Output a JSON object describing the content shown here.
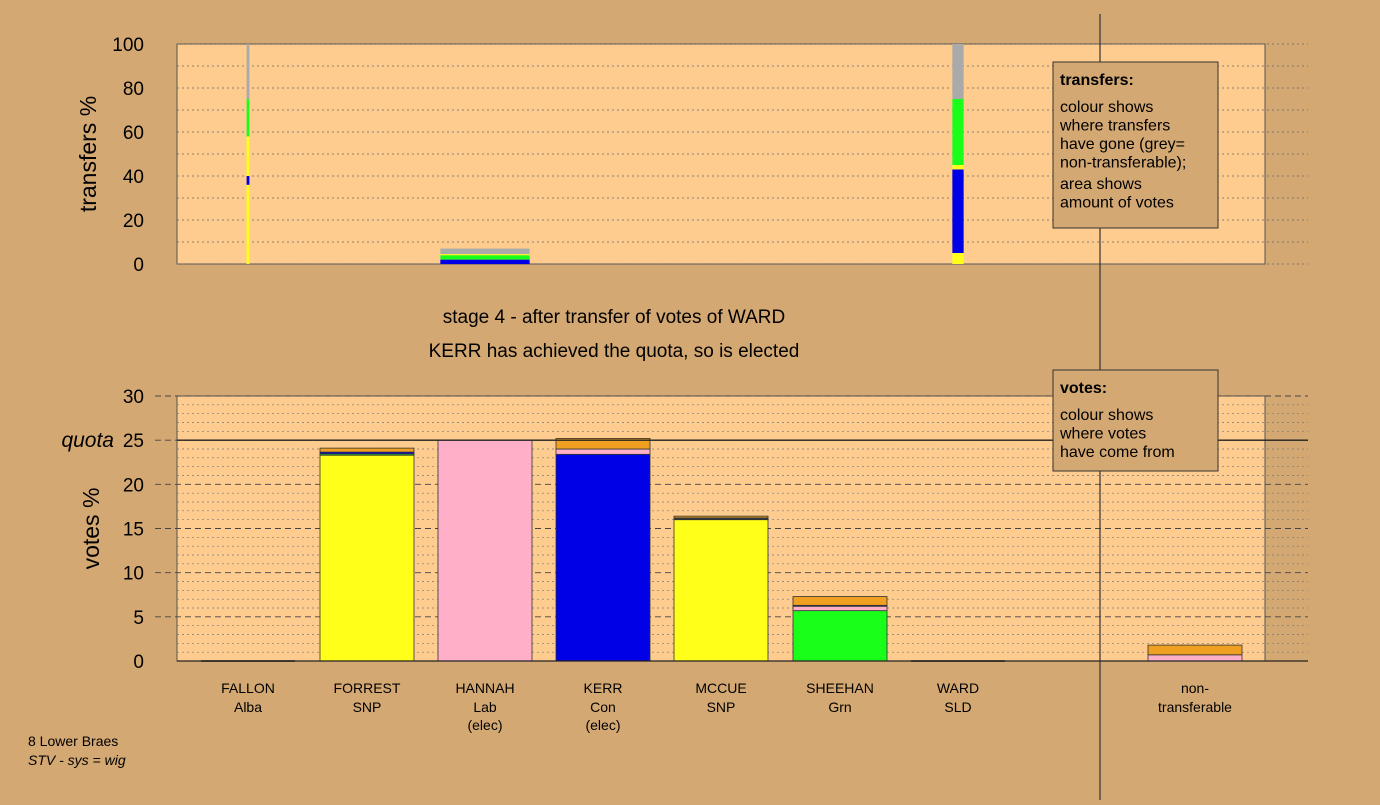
{
  "colors": {
    "background": "#d4a873",
    "plot_area": "#ffcc8f",
    "Alba": "#ff8c1a",
    "SNP": "#ffff1a",
    "Lab": "#ffb0c8",
    "Con": "#0000e6",
    "Grn": "#1aff1a",
    "SLD": "#f0a020",
    "nontransferable": "#aaaaaa",
    "border": "#555555",
    "text": "#000000"
  },
  "stage": {
    "line1": "stage 4 - after transfer of votes of WARD",
    "line2": "KERR has achieved the quota, so is elected"
  },
  "footer": {
    "ward": "8 Lower Braes",
    "system": "STV - sys = wig"
  },
  "chart_data": [
    {
      "id": "transfers",
      "type": "bar",
      "ylabel": "transfers %",
      "ylim": [
        0,
        100
      ],
      "yticks": [
        0,
        20,
        40,
        60,
        80,
        100
      ],
      "legend": {
        "title": "transfers:",
        "lines1": [
          "colour shows",
          "where transfers",
          "have gone (grey=",
          "non-transferable);"
        ],
        "lines2": [
          "area shows",
          "amount of votes"
        ]
      },
      "bars": [
        {
          "candidate": "FALLON",
          "width_share": 0.03,
          "segments": [
            {
              "party": "SNP",
              "from": 0,
              "to": 36
            },
            {
              "party": "Con",
              "from": 36,
              "to": 40
            },
            {
              "party": "SNP",
              "from": 40,
              "to": 58
            },
            {
              "party": "Grn",
              "from": 58,
              "to": 75
            },
            {
              "party": "nontransferable",
              "from": 75,
              "to": 100
            }
          ]
        },
        {
          "candidate": "FORREST",
          "width_share": 0,
          "segments": []
        },
        {
          "candidate": "HANNAH",
          "width_share": 0.95,
          "segments": [
            {
              "party": "Con",
              "from": 0,
              "to": 2
            },
            {
              "party": "Grn",
              "from": 2,
              "to": 4
            },
            {
              "party": "SNP",
              "from": 4,
              "to": 4.5
            },
            {
              "party": "nontransferable",
              "from": 4.5,
              "to": 7
            }
          ]
        },
        {
          "candidate": "KERR",
          "width_share": 0,
          "segments": []
        },
        {
          "candidate": "MCCUE",
          "width_share": 0,
          "segments": []
        },
        {
          "candidate": "SHEEHAN",
          "width_share": 0,
          "segments": []
        },
        {
          "candidate": "WARD",
          "width_share": 0.12,
          "segments": [
            {
              "party": "SNP",
              "from": 0,
              "to": 5
            },
            {
              "party": "Con",
              "from": 5,
              "to": 43
            },
            {
              "party": "SNP",
              "from": 43,
              "to": 45
            },
            {
              "party": "Grn",
              "from": 45,
              "to": 75
            },
            {
              "party": "nontransferable",
              "from": 75,
              "to": 100
            }
          ]
        }
      ]
    },
    {
      "id": "votes",
      "type": "bar",
      "ylabel": "votes %",
      "ylim": [
        0,
        30
      ],
      "yticks": [
        0,
        5,
        10,
        15,
        20,
        25,
        30
      ],
      "quota": 25,
      "quota_label": "quota",
      "legend": {
        "title": "votes:",
        "lines1": [
          "colour shows",
          "where votes",
          "have come from"
        ]
      },
      "categories": [
        {
          "name": "FALLON",
          "party": "Alba",
          "note": ""
        },
        {
          "name": "FORREST",
          "party": "SNP",
          "note": ""
        },
        {
          "name": "HANNAH",
          "party": "Lab",
          "note": "(elec)"
        },
        {
          "name": "KERR",
          "party": "Con",
          "note": "(elec)"
        },
        {
          "name": "MCCUE",
          "party": "SNP",
          "note": ""
        },
        {
          "name": "SHEEHAN",
          "party": "Grn",
          "note": ""
        },
        {
          "name": "WARD",
          "party": "SLD",
          "note": ""
        }
      ],
      "nontransferable_label": [
        "non-",
        "transferable"
      ],
      "bars": [
        {
          "candidate": "FALLON",
          "segments": []
        },
        {
          "candidate": "FORREST",
          "segments": [
            {
              "party": "SNP",
              "value": 23.3
            },
            {
              "party": "Grn",
              "value": 0.15
            },
            {
              "party": "Con",
              "value": 0.2
            },
            {
              "party": "SLD",
              "value": 0.45
            }
          ]
        },
        {
          "candidate": "HANNAH",
          "segments": [
            {
              "party": "Lab",
              "value": 25.0
            }
          ]
        },
        {
          "candidate": "KERR",
          "segments": [
            {
              "party": "Con",
              "value": 23.4
            },
            {
              "party": "Lab",
              "value": 0.6
            },
            {
              "party": "SLD",
              "value": 1.2
            }
          ]
        },
        {
          "candidate": "MCCUE",
          "segments": [
            {
              "party": "SNP",
              "value": 16.0
            },
            {
              "party": "Con",
              "value": 0.1
            },
            {
              "party": "Grn",
              "value": 0.1
            },
            {
              "party": "SLD",
              "value": 0.2
            }
          ]
        },
        {
          "candidate": "SHEEHAN",
          "segments": [
            {
              "party": "Grn",
              "value": 5.7
            },
            {
              "party": "Lab",
              "value": 0.5
            },
            {
              "party": "Con",
              "value": 0.1
            },
            {
              "party": "SLD",
              "value": 1.0
            }
          ]
        },
        {
          "candidate": "WARD",
          "segments": []
        }
      ],
      "nontransferable_segments": [
        {
          "party": "Lab",
          "value": 0.7
        },
        {
          "party": "SLD",
          "value": 1.1
        }
      ]
    }
  ]
}
